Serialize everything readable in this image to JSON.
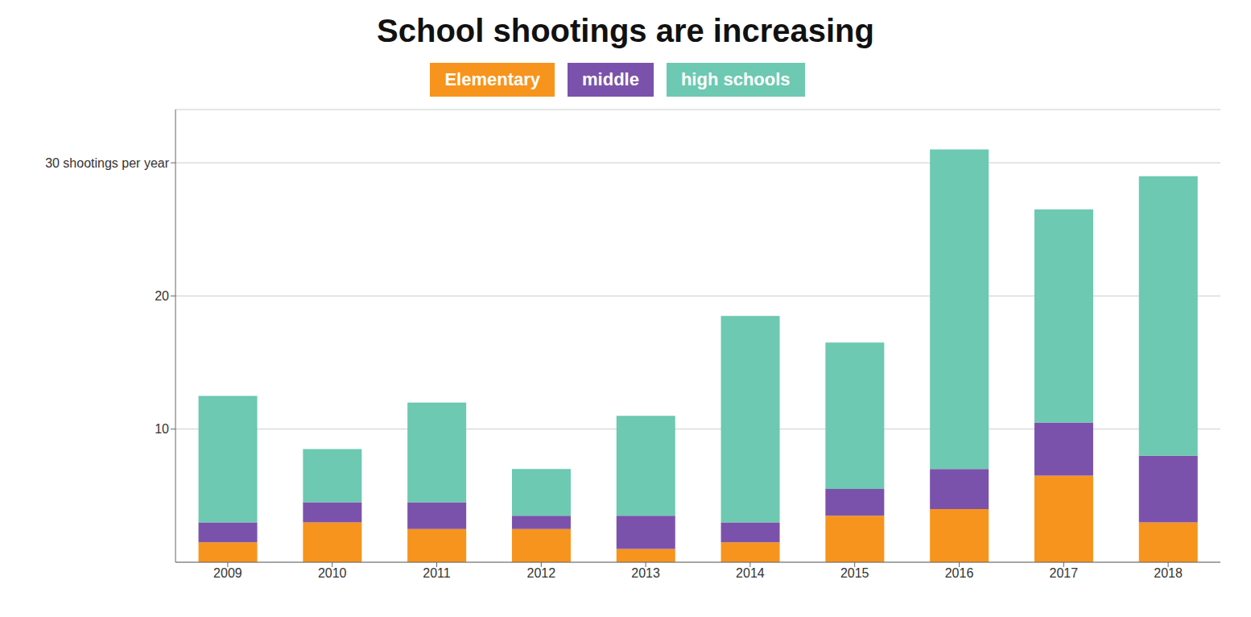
{
  "chart_data": {
    "type": "bar",
    "title": "School shootings are increasing",
    "categories": [
      "2009",
      "2010",
      "2011",
      "2012",
      "2013",
      "2014",
      "2015",
      "2016",
      "2017",
      "2018"
    ],
    "series": [
      {
        "name": "Elementary",
        "color": "#F7941D",
        "values": [
          1.5,
          3.0,
          2.5,
          2.5,
          1.0,
          1.5,
          3.5,
          4.0,
          6.5,
          3.0
        ]
      },
      {
        "name": "middle",
        "color": "#7B52AB",
        "values": [
          1.5,
          1.5,
          2.0,
          1.0,
          2.5,
          1.5,
          2.0,
          3.0,
          4.0,
          5.0
        ]
      },
      {
        "name": "high schools",
        "color": "#6DC9B1",
        "values": [
          9.5,
          4.0,
          7.5,
          3.5,
          7.5,
          15.5,
          11.0,
          24.0,
          16.0,
          21.0
        ]
      }
    ],
    "ylim": [
      0,
      34
    ],
    "yticks": [
      10,
      20,
      {
        "value": 30,
        "label": "30 shootings per year"
      }
    ],
    "stacked": true,
    "grid": true,
    "legend": "top"
  }
}
